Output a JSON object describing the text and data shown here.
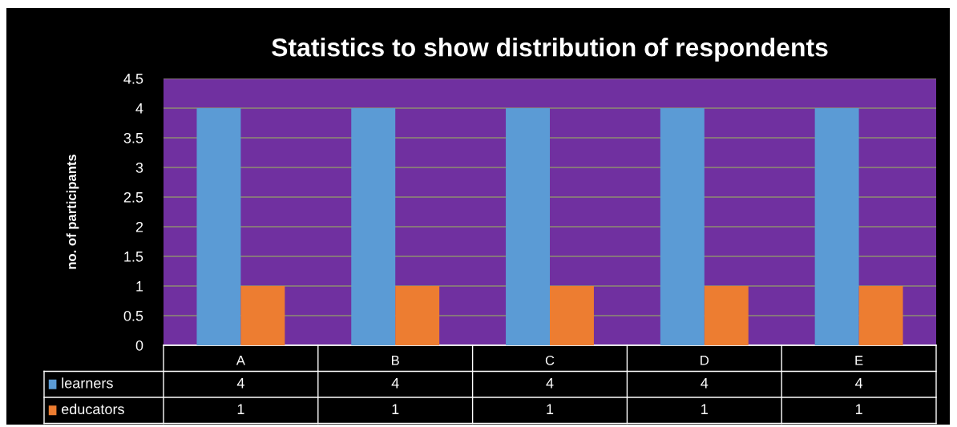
{
  "chart_data": {
    "type": "bar",
    "title": "Statistics to show distribution of respondents",
    "ylabel": "no. of participants",
    "categories": [
      "A",
      "B",
      "C",
      "D",
      "E"
    ],
    "series": [
      {
        "name": "learners",
        "color": "#5b9bd5",
        "values": [
          4,
          4,
          4,
          4,
          4
        ]
      },
      {
        "name": "educators",
        "color": "#ed7d31",
        "values": [
          1,
          1,
          1,
          1,
          1
        ]
      }
    ],
    "ylim": [
      0,
      4.5
    ],
    "yticks": [
      0,
      0.5,
      1,
      1.5,
      2,
      2.5,
      3,
      3.5,
      4,
      4.5
    ],
    "grid": "y",
    "legend": "bottom",
    "data_labels": true
  }
}
